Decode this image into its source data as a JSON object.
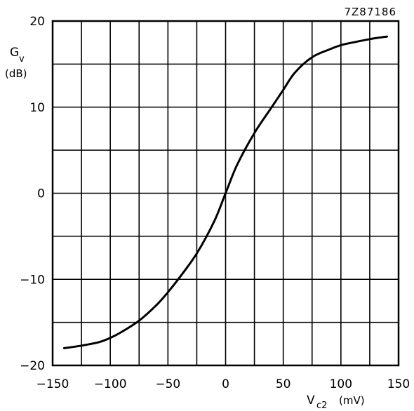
{
  "chart_data": {
    "type": "line",
    "reference_code": "7Z87186",
    "ylabel": {
      "main": "G",
      "sub": "v",
      "unit": "(dB)"
    },
    "xlabel": {
      "main": "V",
      "sub": "c2",
      "unit": "(mV)"
    },
    "xlim": [
      -150,
      150
    ],
    "ylim": [
      -20,
      20
    ],
    "x_ticks": [
      -150,
      -125,
      -100,
      -75,
      -50,
      -25,
      0,
      25,
      50,
      75,
      100,
      125,
      150
    ],
    "y_ticks": [
      -20,
      -15,
      -10,
      -5,
      0,
      5,
      10,
      15,
      20
    ],
    "x_tick_labels": [
      "−150",
      "−100",
      "−50",
      "0",
      "50",
      "100",
      "150"
    ],
    "x_tick_label_values": [
      -150,
      -100,
      -50,
      0,
      50,
      100,
      150
    ],
    "y_tick_labels": [
      "20",
      "10",
      "0",
      "−10",
      "−20"
    ],
    "y_tick_label_values": [
      20,
      10,
      0,
      -10,
      -20
    ],
    "grid": true,
    "series": [
      {
        "x": [
          -140,
          -125,
          -110,
          -100,
          -90,
          -75,
          -60,
          -50,
          -40,
          -25,
          -10,
          0,
          10,
          25,
          40,
          50,
          60,
          75,
          90,
          100,
          110,
          125,
          140
        ],
        "y": [
          -18.0,
          -17.7,
          -17.3,
          -16.8,
          -16.1,
          -14.8,
          -13.0,
          -11.5,
          -9.8,
          -7.0,
          -3.3,
          0.0,
          3.3,
          7.0,
          10.0,
          12.0,
          14.0,
          15.8,
          16.7,
          17.2,
          17.5,
          17.9,
          18.2
        ]
      }
    ]
  }
}
